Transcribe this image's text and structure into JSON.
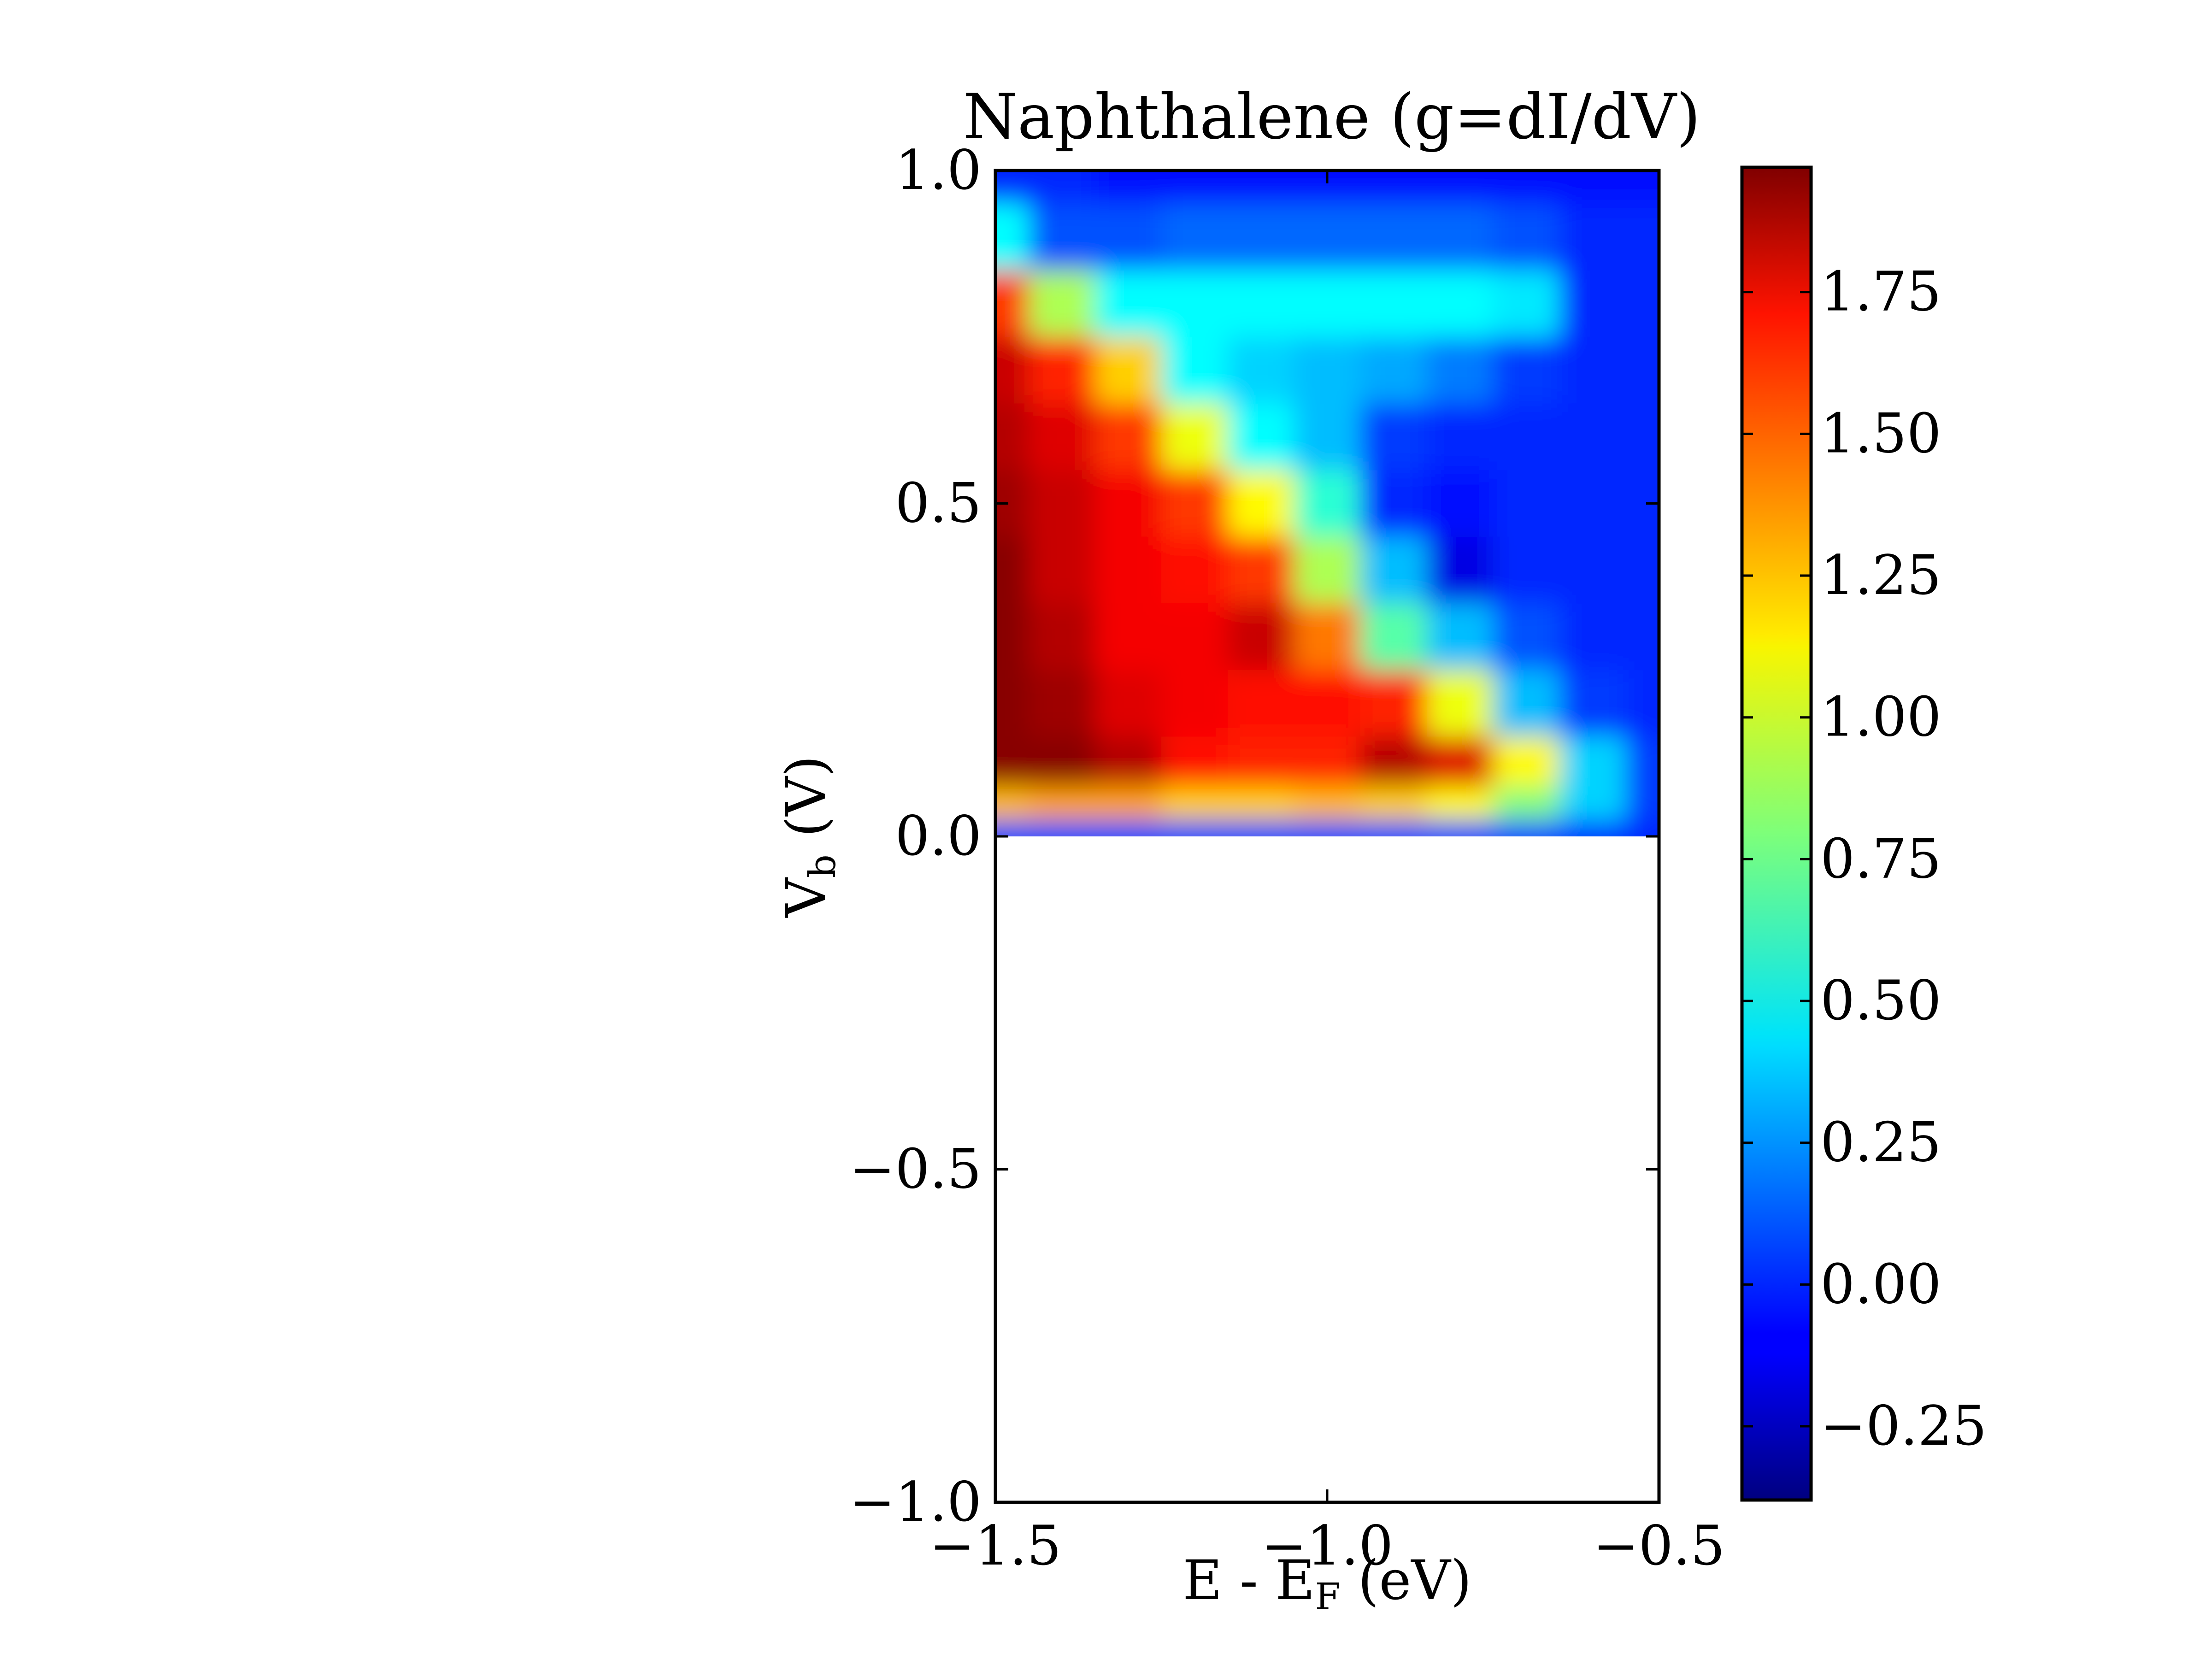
{
  "chart_data": {
    "type": "heatmap",
    "title": "Naphthalene (g=dI/dV)",
    "xlabel": {
      "main": "E - E",
      "sub": "F",
      "unit": " (eV)"
    },
    "ylabel": {
      "main": "V",
      "sub": "b",
      "unit": " (V)"
    },
    "xlim": [
      -1.5,
      -0.5
    ],
    "ylim": [
      -1.0,
      1.0
    ],
    "data_extent": {
      "x": [
        -1.5,
        -0.5
      ],
      "y": [
        0.0,
        1.0
      ]
    },
    "x_ticks": [
      {
        "value": -1.5,
        "label": "−1.5"
      },
      {
        "value": -1.0,
        "label": "−1.0"
      },
      {
        "value": -0.5,
        "label": "−0.5"
      }
    ],
    "y_ticks": [
      {
        "value": 1.0,
        "label": "1.0"
      },
      {
        "value": 0.5,
        "label": "0.5"
      },
      {
        "value": 0.0,
        "label": "0.0"
      },
      {
        "value": -0.5,
        "label": "−0.5"
      },
      {
        "value": -1.0,
        "label": "−1.0"
      }
    ],
    "colormap": "jet",
    "colorbar": {
      "vmin": -0.38,
      "vmax": 1.97,
      "ticks": [
        {
          "value": 1.75,
          "label": "1.75"
        },
        {
          "value": 1.5,
          "label": "1.50"
        },
        {
          "value": 1.25,
          "label": "1.25"
        },
        {
          "value": 1.0,
          "label": "1.00"
        },
        {
          "value": 0.75,
          "label": "0.75"
        },
        {
          "value": 0.5,
          "label": "0.50"
        },
        {
          "value": 0.25,
          "label": "0.25"
        },
        {
          "value": 0.0,
          "label": "0.00"
        },
        {
          "value": -0.25,
          "label": "−0.25"
        }
      ]
    },
    "grid_x": [
      -1.5,
      -1.4,
      -1.3,
      -1.2,
      -1.1,
      -1.0,
      -0.9,
      -0.8,
      -0.7,
      -0.6,
      -0.5
    ],
    "grid_y": [
      1.0,
      0.9,
      0.8,
      0.7,
      0.6,
      0.5,
      0.4,
      0.3,
      0.2,
      0.1,
      0.05,
      0.0
    ],
    "values": [
      [
        0.0,
        0.0,
        -0.05,
        -0.05,
        -0.05,
        -0.05,
        -0.05,
        -0.05,
        -0.05,
        -0.05,
        -0.05
      ],
      [
        0.5,
        0.1,
        0.1,
        0.15,
        0.15,
        0.15,
        0.15,
        0.15,
        0.1,
        0.0,
        0.0
      ],
      [
        1.55,
        0.9,
        0.5,
        0.5,
        0.5,
        0.5,
        0.5,
        0.5,
        0.45,
        0.0,
        0.0
      ],
      [
        1.8,
        1.6,
        1.2,
        0.5,
        0.4,
        0.35,
        0.3,
        0.2,
        0.05,
        0.0,
        0.0
      ],
      [
        1.85,
        1.75,
        1.55,
        1.05,
        0.5,
        0.35,
        0.05,
        0.0,
        0.0,
        0.0,
        0.0
      ],
      [
        1.9,
        1.8,
        1.7,
        1.55,
        1.1,
        0.6,
        0.0,
        -0.05,
        0.0,
        0.0,
        0.0
      ],
      [
        1.95,
        1.8,
        1.7,
        1.65,
        1.55,
        0.9,
        0.35,
        -0.15,
        0.0,
        0.0,
        0.0
      ],
      [
        1.95,
        1.85,
        1.7,
        1.7,
        1.8,
        1.4,
        0.7,
        0.35,
        0.1,
        0.0,
        0.0
      ],
      [
        1.95,
        1.9,
        1.75,
        1.7,
        1.65,
        1.65,
        1.6,
        1.05,
        0.35,
        0.05,
        0.0
      ],
      [
        1.95,
        1.95,
        1.85,
        1.65,
        1.6,
        1.6,
        1.85,
        1.75,
        1.1,
        0.4,
        0.05
      ],
      [
        1.25,
        1.3,
        1.3,
        1.2,
        1.2,
        1.25,
        1.2,
        1.1,
        0.8,
        0.4,
        0.05
      ],
      [
        0.1,
        0.1,
        0.1,
        0.1,
        0.1,
        0.1,
        0.1,
        0.1,
        0.1,
        0.05,
        0.0
      ]
    ]
  }
}
